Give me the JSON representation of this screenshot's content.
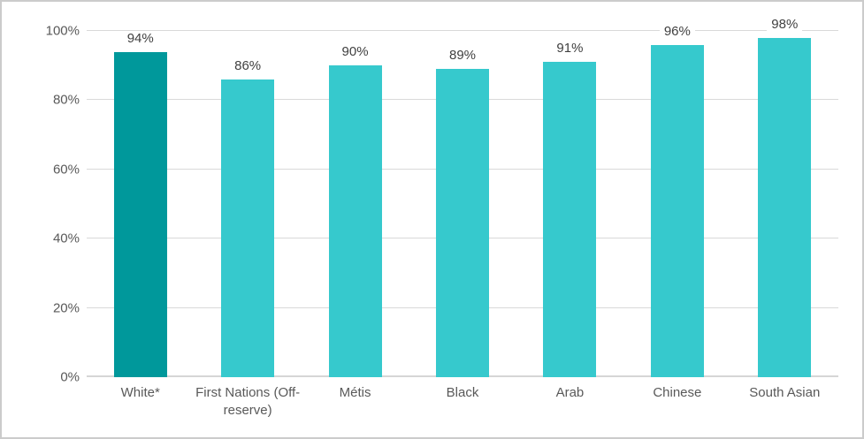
{
  "chart_data": {
    "type": "bar",
    "title": "",
    "xlabel": "",
    "ylabel": "",
    "categories": [
      "White*",
      "First Nations (Off-reserve)",
      "Métis",
      "Black",
      "Arab",
      "Chinese",
      "South Asian"
    ],
    "values": [
      94,
      86,
      90,
      89,
      91,
      96,
      98
    ],
    "data_labels": [
      "94%",
      "86%",
      "90%",
      "89%",
      "91%",
      "96%",
      "98%"
    ],
    "ylim": [
      0,
      100
    ],
    "yticks": [
      {
        "value": 0,
        "label": "0%"
      },
      {
        "value": 20,
        "label": "20%"
      },
      {
        "value": 40,
        "label": "40%"
      },
      {
        "value": 60,
        "label": "60%"
      },
      {
        "value": 80,
        "label": "80%"
      },
      {
        "value": 100,
        "label": "100%"
      }
    ],
    "grid": true,
    "legend": "none",
    "highlight_index": 0,
    "colors": {
      "highlight_bar": "#00989b",
      "default_bar": "#36c9cd",
      "gridline": "#d9d9d9",
      "axis_line": "#d6d6d6",
      "axis_text": "#595959",
      "data_label_text": "#404040",
      "frame_border": "#cbcbcb",
      "background": "#ffffff"
    }
  }
}
